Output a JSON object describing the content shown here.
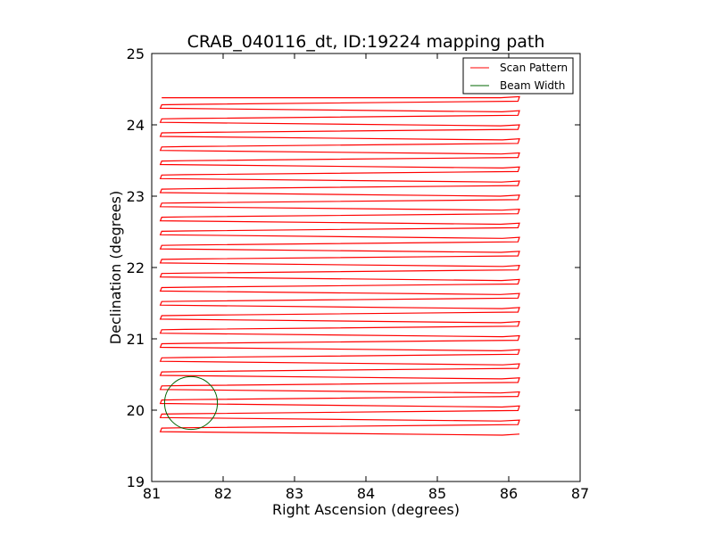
{
  "chart_data": {
    "type": "line",
    "title": "CRAB_040116_dt, ID:19224 mapping path",
    "xlabel": "Right Ascension (degrees)",
    "ylabel": "Declination (degrees)",
    "xlim": [
      81,
      87
    ],
    "ylim": [
      19,
      25
    ],
    "xticks": [
      "81",
      "82",
      "83",
      "84",
      "85",
      "86",
      "87"
    ],
    "yticks": [
      "19",
      "20",
      "21",
      "22",
      "23",
      "24",
      "25"
    ],
    "grid": false,
    "legend_position": "top-right",
    "series": [
      {
        "name": "Scan Pattern",
        "color": "#ff0000",
        "pattern": "raster",
        "ra_range": [
          81.12,
          86.15
        ],
        "dec_start": 24.38,
        "dec_end": 19.65,
        "num_passes": 49
      },
      {
        "name": "Beam Width",
        "color": "#006400",
        "shape": "circle",
        "center": [
          81.55,
          20.1
        ],
        "radius_deg": 0.37
      }
    ]
  }
}
